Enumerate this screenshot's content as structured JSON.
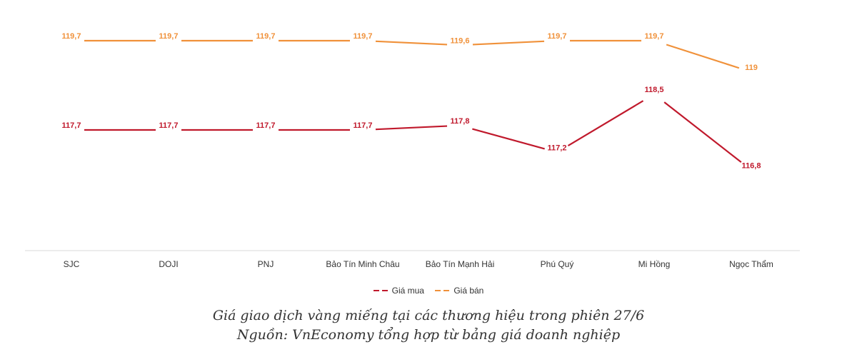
{
  "chart_data": {
    "type": "line",
    "title": "",
    "xlabel": "",
    "ylabel": "",
    "categories": [
      "SJC",
      "DOJI",
      "PNJ",
      "Bảo Tín Minh Châu",
      "Bảo Tín Mạnh Hải",
      "Phú Quý",
      "Mi Hồng",
      "Ngọc Thẩm"
    ],
    "series": [
      {
        "name": "Giá mua",
        "color": "#c0192c",
        "values": [
          117.7,
          117.7,
          117.7,
          117.7,
          117.8,
          117.2,
          118.5,
          116.8
        ],
        "labels": [
          "117,7",
          "117,7",
          "117,7",
          "117,7",
          "117,8",
          "117,2",
          "118,5",
          "116,8"
        ]
      },
      {
        "name": "Giá bán",
        "color": "#f0913a",
        "values": [
          119.7,
          119.7,
          119.7,
          119.7,
          119.6,
          119.7,
          119.7,
          119.0
        ],
        "labels": [
          "119,7",
          "119,7",
          "119,7",
          "119,7",
          "119,6",
          "119,7",
          "119,7",
          "119"
        ]
      }
    ],
    "ylim": [
      115.5,
      120.0
    ],
    "grid": false,
    "legend_position": "bottom"
  },
  "legend": {
    "buy_label": "Giá mua",
    "sell_label": "Giá bán"
  },
  "caption": {
    "line1": "Giá giao dịch vàng miếng tại các thương hiệu trong phiên 27/6",
    "line2": "Nguồn: VnEconomy tổng hợp từ bảng giá doanh nghiệp"
  }
}
